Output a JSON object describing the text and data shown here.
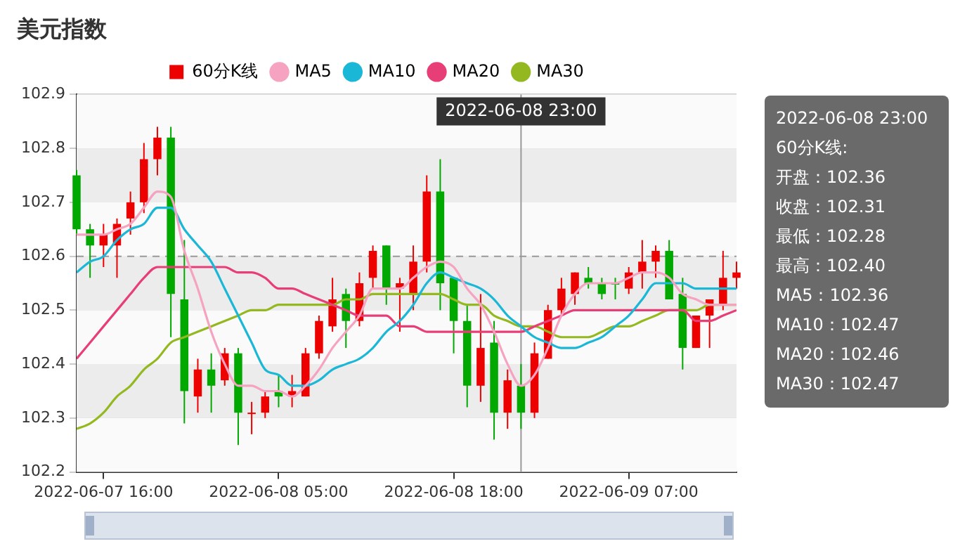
{
  "chart_data": {
    "type": "candlestick",
    "title": "美元指数",
    "x": [
      "2022-06-07T14:00",
      "2022-06-07T15:00",
      "2022-06-07T16:00",
      "2022-06-07T17:00",
      "2022-06-07T18:00",
      "2022-06-07T19:00",
      "2022-06-07T20:00",
      "2022-06-07T21:00",
      "2022-06-07T22:00",
      "2022-06-07T23:00",
      "2022-06-08T00:00",
      "2022-06-08T01:00",
      "2022-06-08T02:00",
      "2022-06-08T03:00",
      "2022-06-08T04:00",
      "2022-06-08T05:00",
      "2022-06-08T06:00",
      "2022-06-08T07:00",
      "2022-06-08T08:00",
      "2022-06-08T09:00",
      "2022-06-08T10:00",
      "2022-06-08T11:00",
      "2022-06-08T12:00",
      "2022-06-08T13:00",
      "2022-06-08T14:00",
      "2022-06-08T15:00",
      "2022-06-08T16:00",
      "2022-06-08T17:00",
      "2022-06-08T18:00",
      "2022-06-08T19:00",
      "2022-06-08T20:00",
      "2022-06-08T21:00",
      "2022-06-08T22:00",
      "2022-06-08T23:00",
      "2022-06-09T00:00",
      "2022-06-09T01:00",
      "2022-06-09T02:00",
      "2022-06-09T03:00",
      "2022-06-09T04:00",
      "2022-06-09T05:00",
      "2022-06-09T06:00",
      "2022-06-09T07:00",
      "2022-06-09T08:00",
      "2022-06-09T09:00",
      "2022-06-09T10:00",
      "2022-06-09T11:00",
      "2022-06-09T12:00",
      "2022-06-09T13:00",
      "2022-06-09T14:00",
      "2022-06-09T15:00"
    ],
    "series": [
      {
        "name": "60分K线",
        "type": "candlestick",
        "color": "#ec0000",
        "colors": [
          "#00a800",
          "#00a800",
          "#ec0000",
          "#ec0000",
          "#ec0000",
          "#ec0000",
          "#ec0000",
          "#00a800",
          "#00a800",
          "#ec0000",
          "#00a800",
          "#ec0000",
          "#00a800",
          "#ec0000",
          "#ec0000",
          "#00a800",
          "#ec0000",
          "#ec0000",
          "#ec0000",
          "#ec0000",
          "#00a800",
          "#ec0000",
          "#ec0000",
          "#00a800",
          "#ec0000",
          "#ec0000",
          "#ec0000",
          "#00a800",
          "#00a800",
          "#00a800",
          "#ec0000",
          "#00a800",
          "#ec0000",
          "#00a800",
          "#ec0000",
          "#ec0000",
          "#ec0000",
          "#ec0000",
          "#00a800",
          "#00a800",
          "#00a800",
          "#ec0000",
          "#ec0000",
          "#ec0000",
          "#00a800",
          "#00a800",
          "#ec0000",
          "#ec0000",
          "#ec0000",
          "#ec0000"
        ],
        "ohlc": [
          [
            102.75,
            102.76,
            102.64,
            102.65
          ],
          [
            102.65,
            102.66,
            102.56,
            102.62
          ],
          [
            102.62,
            102.66,
            102.58,
            102.64
          ],
          [
            102.62,
            102.67,
            102.56,
            102.66
          ],
          [
            102.67,
            102.72,
            102.64,
            102.7
          ],
          [
            102.7,
            102.81,
            102.68,
            102.78
          ],
          [
            102.78,
            102.84,
            102.75,
            102.82
          ],
          [
            102.82,
            102.84,
            102.45,
            102.53
          ],
          [
            102.52,
            102.63,
            102.29,
            102.35
          ],
          [
            102.34,
            102.41,
            102.31,
            102.39
          ],
          [
            102.39,
            102.42,
            102.31,
            102.36
          ],
          [
            102.37,
            102.43,
            102.36,
            102.42
          ],
          [
            102.42,
            102.43,
            102.25,
            102.31
          ],
          [
            102.31,
            102.33,
            102.27,
            102.31
          ],
          [
            102.31,
            102.35,
            102.3,
            102.34
          ],
          [
            102.35,
            102.38,
            102.32,
            102.34
          ],
          [
            102.34,
            102.38,
            102.32,
            102.35
          ],
          [
            102.34,
            102.43,
            102.34,
            102.42
          ],
          [
            102.42,
            102.49,
            102.41,
            102.48
          ],
          [
            102.47,
            102.56,
            102.46,
            102.52
          ],
          [
            102.53,
            102.54,
            102.43,
            102.48
          ],
          [
            102.48,
            102.57,
            102.47,
            102.55
          ],
          [
            102.56,
            102.62,
            102.54,
            102.61
          ],
          [
            102.62,
            102.62,
            102.51,
            102.54
          ],
          [
            102.54,
            102.56,
            102.46,
            102.55
          ],
          [
            102.53,
            102.62,
            102.5,
            102.59
          ],
          [
            102.59,
            102.75,
            102.57,
            102.72
          ],
          [
            102.72,
            102.78,
            102.5,
            102.55
          ],
          [
            102.56,
            102.56,
            102.42,
            102.48
          ],
          [
            102.48,
            102.51,
            102.32,
            102.36
          ],
          [
            102.36,
            102.53,
            102.33,
            102.43
          ],
          [
            102.44,
            102.48,
            102.26,
            102.31
          ],
          [
            102.31,
            102.39,
            102.28,
            102.37
          ],
          [
            102.36,
            102.4,
            102.28,
            102.31
          ],
          [
            102.31,
            102.44,
            102.3,
            102.42
          ],
          [
            102.41,
            102.51,
            102.41,
            102.5
          ],
          [
            102.5,
            102.56,
            102.49,
            102.54
          ],
          [
            102.53,
            102.57,
            102.51,
            102.57
          ],
          [
            102.56,
            102.58,
            102.54,
            102.55
          ],
          [
            102.55,
            102.56,
            102.52,
            102.53
          ],
          [
            102.55,
            102.56,
            102.52,
            102.55
          ],
          [
            102.54,
            102.58,
            102.53,
            102.57
          ],
          [
            102.57,
            102.63,
            102.54,
            102.59
          ],
          [
            102.59,
            102.62,
            102.56,
            102.61
          ],
          [
            102.61,
            102.63,
            102.52,
            102.52
          ],
          [
            102.53,
            102.56,
            102.39,
            102.43
          ],
          [
            102.43,
            102.49,
            102.43,
            102.49
          ],
          [
            102.49,
            102.52,
            102.43,
            102.52
          ],
          [
            102.51,
            102.61,
            102.5,
            102.56
          ],
          [
            102.56,
            102.59,
            102.54,
            102.57
          ]
        ]
      },
      {
        "name": "MA5",
        "type": "line",
        "color": "#f5a3c0",
        "values": [
          102.64,
          102.64,
          102.64,
          102.65,
          102.66,
          102.69,
          102.72,
          102.71,
          102.61,
          102.54,
          102.46,
          102.4,
          102.36,
          102.36,
          102.35,
          102.35,
          102.34,
          102.36,
          102.39,
          102.43,
          102.46,
          102.49,
          102.54,
          102.54,
          102.54,
          102.56,
          102.58,
          102.59,
          102.58,
          102.54,
          102.51,
          102.46,
          102.4,
          102.36,
          102.38,
          102.43,
          102.49,
          102.53,
          102.55,
          102.55,
          102.55,
          102.56,
          102.57,
          102.57,
          102.56,
          102.53,
          102.52,
          102.51,
          102.51,
          102.51
        ]
      },
      {
        "name": "MA10",
        "type": "line",
        "color": "#1ab7d6",
        "values": [
          102.57,
          102.59,
          102.6,
          102.63,
          102.65,
          102.66,
          102.69,
          102.69,
          102.65,
          102.62,
          102.59,
          102.54,
          102.49,
          102.44,
          102.39,
          102.38,
          102.36,
          102.36,
          102.37,
          102.39,
          102.4,
          102.41,
          102.43,
          102.46,
          102.48,
          102.51,
          102.55,
          102.57,
          102.56,
          102.55,
          102.54,
          102.52,
          102.49,
          102.47,
          102.45,
          102.44,
          102.43,
          102.43,
          102.44,
          102.45,
          102.47,
          102.49,
          102.52,
          102.55,
          102.55,
          102.55,
          102.54,
          102.54,
          102.54,
          102.54
        ]
      },
      {
        "name": "MA20",
        "type": "line",
        "color": "#e83e78",
        "values": [
          102.41,
          102.44,
          102.47,
          102.5,
          102.53,
          102.56,
          102.58,
          102.58,
          102.58,
          102.58,
          102.58,
          102.58,
          102.57,
          102.57,
          102.56,
          102.54,
          102.54,
          102.53,
          102.52,
          102.51,
          102.5,
          102.49,
          102.49,
          102.49,
          102.47,
          102.47,
          102.46,
          102.46,
          102.46,
          102.46,
          102.46,
          102.46,
          102.46,
          102.46,
          102.47,
          102.48,
          102.49,
          102.5,
          102.5,
          102.5,
          102.5,
          102.5,
          102.5,
          102.5,
          102.5,
          102.5,
          102.48,
          102.48,
          102.49,
          102.5
        ]
      },
      {
        "name": "MA30",
        "type": "line",
        "color": "#94b820",
        "values": [
          102.28,
          102.29,
          102.31,
          102.34,
          102.36,
          102.39,
          102.41,
          102.44,
          102.45,
          102.46,
          102.47,
          102.48,
          102.49,
          102.5,
          102.5,
          102.51,
          102.51,
          102.51,
          102.51,
          102.51,
          102.52,
          102.52,
          102.53,
          102.53,
          102.53,
          102.53,
          102.53,
          102.53,
          102.52,
          102.51,
          102.51,
          102.49,
          102.48,
          102.47,
          102.47,
          102.46,
          102.45,
          102.45,
          102.45,
          102.46,
          102.47,
          102.47,
          102.48,
          102.49,
          102.5,
          102.5,
          102.5,
          102.51,
          102.51,
          102.51
        ]
      }
    ],
    "xlim": [
      "2022-06-07T14:00",
      "2022-06-09T15:00"
    ],
    "xticks": [
      {
        "value": "2022-06-07T16:00",
        "label": "2022-06-07 16:00"
      },
      {
        "value": "2022-06-08T05:00",
        "label": "2022-06-08 05:00"
      },
      {
        "value": "2022-06-08T18:00",
        "label": "2022-06-08 18:00"
      },
      {
        "value": "2022-06-09T07:00",
        "label": "2022-06-09 07:00"
      }
    ],
    "ylim": [
      102.2,
      102.9
    ],
    "yticks": [
      102.2,
      102.3,
      102.4,
      102.5,
      102.6,
      102.7,
      102.8,
      102.9
    ],
    "grid": "y",
    "legend": "top",
    "marker": "none",
    "ref_lines": [
      {
        "axis": "x",
        "value": "2022-06-08T23:00",
        "label": "2022-06-08 23:00",
        "color": "#999999",
        "line_style": "solid"
      },
      {
        "axis": "y",
        "value": 102.6,
        "color": "#999999",
        "line_style": "dashed"
      }
    ],
    "annotations": [
      "2022-06-08 23:00",
      "60分K线:",
      "开盘：102.36",
      "收盘：102.31",
      "最低：102.28",
      "最高：102.40",
      "MA5：102.36",
      "MA10：102.47",
      "MA20：102.46",
      "MA30：102.47"
    ]
  }
}
